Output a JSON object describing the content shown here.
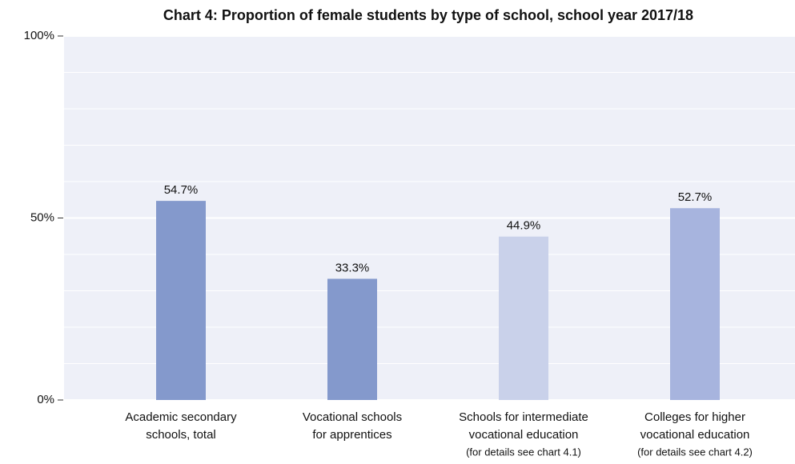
{
  "chart_data": {
    "type": "bar",
    "title": "Chart 4:  Proportion of female students by type of school, school year 2017/18",
    "categories": [
      [
        "Academic secondary",
        "schools, total"
      ],
      [
        "Vocational schools",
        "for apprentices"
      ],
      [
        "Schools for intermediate",
        "vocational education",
        "(for details see chart 4.1)"
      ],
      [
        "Colleges for higher",
        "vocational education",
        "(for details see chart 4.2)"
      ]
    ],
    "values": [
      54.7,
      33.3,
      44.9,
      52.7
    ],
    "value_labels": [
      "54.7%",
      "33.3%",
      "44.9%",
      "52.7%"
    ],
    "colors": [
      "#8499cc",
      "#8499cc",
      "#c9d1ea",
      "#a7b4de"
    ],
    "ylim": [
      0,
      100
    ],
    "yticks": [
      {
        "value": 0,
        "label": "0%"
      },
      {
        "value": 50,
        "label": "50%"
      },
      {
        "value": 100,
        "label": "100%"
      }
    ],
    "minor_grid": [
      10,
      20,
      30,
      40,
      60,
      70,
      80,
      90
    ],
    "grid": true,
    "background": "#eef0f8"
  }
}
